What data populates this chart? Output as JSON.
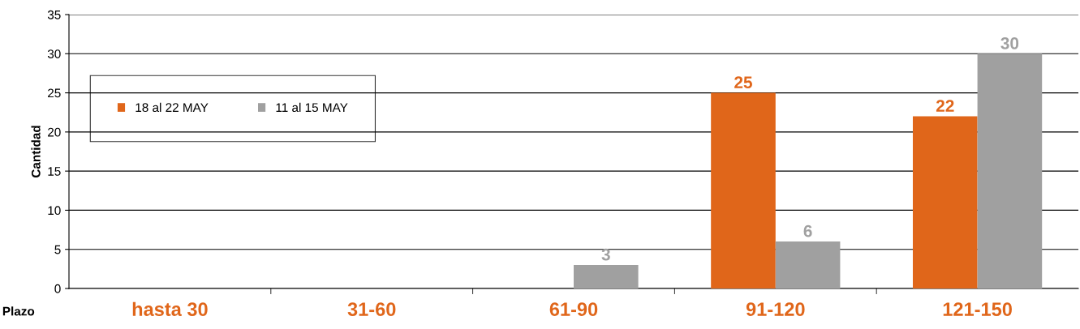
{
  "chart_data": {
    "type": "bar",
    "xlabel": "Plazo",
    "ylabel": "Cantidad",
    "categories": [
      "hasta 30",
      "31-60",
      "61-90",
      "91-120",
      "121-150"
    ],
    "series": [
      {
        "name": "18 al 22 MAY",
        "color": "#e0661a",
        "values": [
          0,
          0,
          0,
          25,
          22
        ],
        "value_labels": [
          null,
          null,
          null,
          "25",
          "22"
        ]
      },
      {
        "name": "11 al 15 MAY",
        "color": "#a0a0a0",
        "values": [
          0,
          0,
          3,
          6,
          30
        ],
        "value_labels": [
          null,
          null,
          "3",
          "6",
          "30"
        ]
      }
    ],
    "ylim": [
      0,
      35
    ],
    "yticks": [
      0,
      5,
      10,
      15,
      20,
      25,
      30,
      35
    ],
    "grid": "y",
    "legend": "top left"
  }
}
